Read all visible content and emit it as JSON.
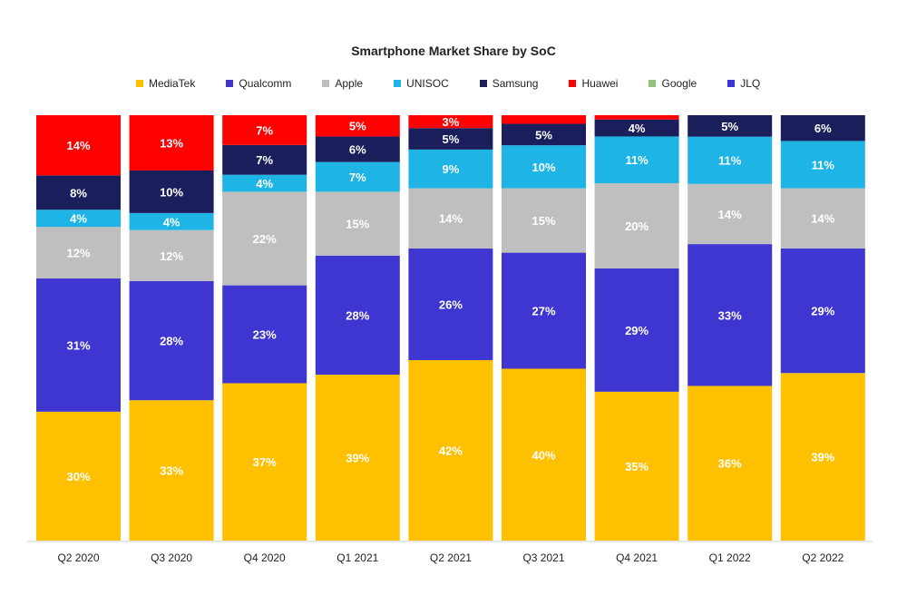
{
  "chart_data": {
    "type": "bar",
    "stacked": true,
    "title": "Smartphone Market Share by SoC",
    "legend_position": "top",
    "categories": [
      "Q2 2020",
      "Q3 2020",
      "Q4 2020",
      "Q1 2021",
      "Q2 2021",
      "Q3 2021",
      "Q4 2021",
      "Q1 2022",
      "Q2 2022"
    ],
    "series": [
      {
        "name": "MediaTek",
        "color": "#FFC000",
        "values": [
          30,
          33,
          37,
          39,
          42,
          40,
          35,
          36,
          39
        ],
        "labels": [
          "30%",
          "33%",
          "37%",
          "39%",
          "42%",
          "40%",
          "35%",
          "36%",
          "39%"
        ]
      },
      {
        "name": "Qualcomm",
        "color": "#3F35D0",
        "values": [
          31,
          28,
          23,
          28,
          26,
          27,
          29,
          33,
          29
        ],
        "labels": [
          "31%",
          "28%",
          "23%",
          "28%",
          "26%",
          "27%",
          "29%",
          "33%",
          "29%"
        ]
      },
      {
        "name": "Apple",
        "color": "#BFBFBF",
        "values": [
          12,
          12,
          22,
          15,
          14,
          15,
          20,
          14,
          14
        ],
        "labels": [
          "12%",
          "12%",
          "22%",
          "15%",
          "14%",
          "15%",
          "20%",
          "14%",
          "14%"
        ]
      },
      {
        "name": "UNISOC",
        "color": "#1EB4E6",
        "values": [
          4,
          4,
          4,
          7,
          9,
          10,
          11,
          11,
          11
        ],
        "labels": [
          "4%",
          "4%",
          "4%",
          "7%",
          "9%",
          "10%",
          "11%",
          "11%",
          "11%"
        ]
      },
      {
        "name": "Samsung",
        "color": "#1A1F5C",
        "values": [
          8,
          10,
          7,
          6,
          5,
          5,
          4,
          5,
          6
        ],
        "labels": [
          "8%",
          "10%",
          "7%",
          "6%",
          "5%",
          "5%",
          "4%",
          "5%",
          "6%"
        ]
      },
      {
        "name": "Huawei",
        "color": "#FF0000",
        "values": [
          14,
          13,
          7,
          5,
          3,
          2,
          1,
          0,
          0
        ],
        "labels": [
          "14%",
          "13%",
          "7%",
          "5%",
          "3%",
          "",
          "",
          "",
          ""
        ]
      },
      {
        "name": "Google",
        "color": "#92C47D",
        "values": [
          0,
          0,
          0,
          0,
          0,
          0,
          0,
          0,
          0
        ],
        "labels": [
          "",
          "",
          "",
          "",
          "",
          "",
          "",
          "",
          ""
        ]
      },
      {
        "name": "JLQ",
        "color": "#3F35D0",
        "values": [
          0,
          0,
          0,
          0,
          0,
          0,
          0,
          0,
          0
        ],
        "labels": [
          "",
          "",
          "",
          "",
          "",
          "",
          "",
          "",
          ""
        ]
      }
    ],
    "ylim": [
      0,
      100
    ]
  }
}
